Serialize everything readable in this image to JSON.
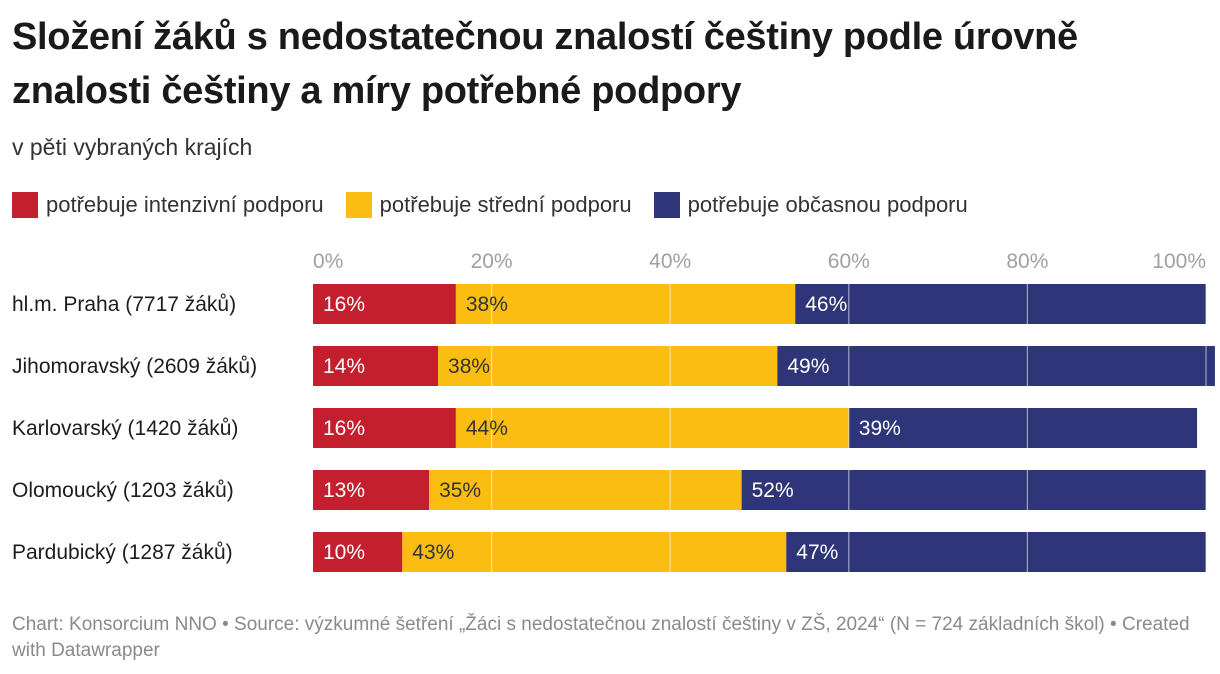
{
  "title": "Složení žáků s nedostatečnou znalostí češtiny podle úrovně znalosti češtiny a míry potřebné podpory",
  "subtitle": "v pěti vybraných krajích",
  "footer": "Chart: Konsorcium NNO • Source: výzkumné šetření „Žáci s nedostatečnou znalostí češtiny v ZŠ, 2024“ (N = 724 základních škol) • Created with Datawrapper",
  "colors": {
    "intensive": "#c41f2f",
    "medium": "#fbbd11",
    "occasional": "#2e3679",
    "grid": "#dcdcdc",
    "tick": "#a0a0a0"
  },
  "chart_data": {
    "type": "bar",
    "orientation": "horizontal",
    "stacked": true,
    "xlim": [
      0,
      100
    ],
    "ticks": [
      "0%",
      "20%",
      "40%",
      "60%",
      "80%",
      "100%"
    ],
    "tick_values": [
      0,
      20,
      40,
      60,
      80,
      100
    ],
    "categories": [
      "hl.m. Praha (7717 žáků)",
      "Jihomoravský (2609 žáků)",
      "Karlovarský (1420 žáků)",
      "Olomoucký (1203 žáků)",
      "Pardubický (1287 žáků)"
    ],
    "series": [
      {
        "name": "potřebuje intenzivní podporu",
        "color_key": "intensive",
        "values": [
          16,
          14,
          16,
          13,
          10
        ],
        "labels": [
          "16%",
          "14%",
          "16%",
          "13%",
          "10%"
        ]
      },
      {
        "name": "potřebuje střední podporu",
        "color_key": "medium",
        "values": [
          38,
          38,
          44,
          35,
          43
        ],
        "labels": [
          "38%",
          "38%",
          "44%",
          "35%",
          "43%"
        ]
      },
      {
        "name": "potřebuje občasnou podporu",
        "color_key": "occasional",
        "values": [
          46,
          49,
          39,
          52,
          47
        ],
        "labels": [
          "46%",
          "49%",
          "39%",
          "52%",
          "47%"
        ]
      }
    ]
  }
}
